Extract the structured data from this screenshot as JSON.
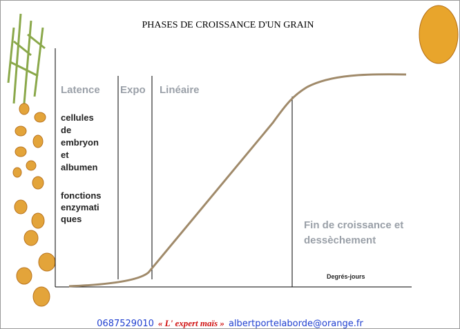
{
  "slide": {
    "title": "PHASES DE CROISSANCE D'UN GRAIN",
    "phases": [
      "Latence",
      "Expo",
      "Linéaire"
    ],
    "block1": [
      "cellules",
      "de",
      "embryon",
      "et",
      "albumen"
    ],
    "block2": [
      "fonctions",
      "enzymati",
      "ques"
    ],
    "end_phase": [
      "Fin de croissance et",
      "dessèchement"
    ],
    "x_axis_label": "Degrés-jours",
    "footer": {
      "phone": "0687529010",
      "brand": "« L' expert maïs »",
      "email": "albertportelaborde@orange.fr"
    }
  }
}
